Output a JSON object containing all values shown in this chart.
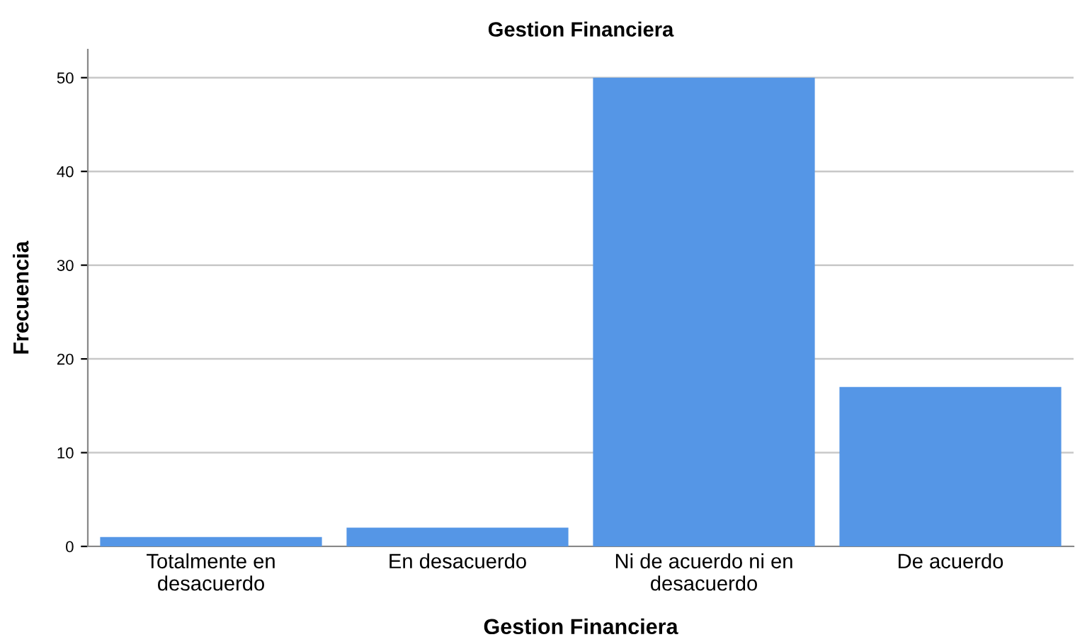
{
  "chart_data": {
    "type": "bar",
    "title": "Gestion Financiera",
    "xlabel": "Gestion Financiera",
    "ylabel": "Frecuencia",
    "categories": [
      "Totalmente en\ndesacuerdo",
      "En desacuerdo",
      "Ni de acuerdo ni en\ndesacuerdo",
      "De acuerdo"
    ],
    "values": [
      1,
      2,
      50,
      17
    ],
    "color": "#5596e6",
    "ylim": [
      0,
      53
    ],
    "yticks": [
      0,
      10,
      20,
      30,
      40,
      50
    ],
    "grid": "y"
  }
}
